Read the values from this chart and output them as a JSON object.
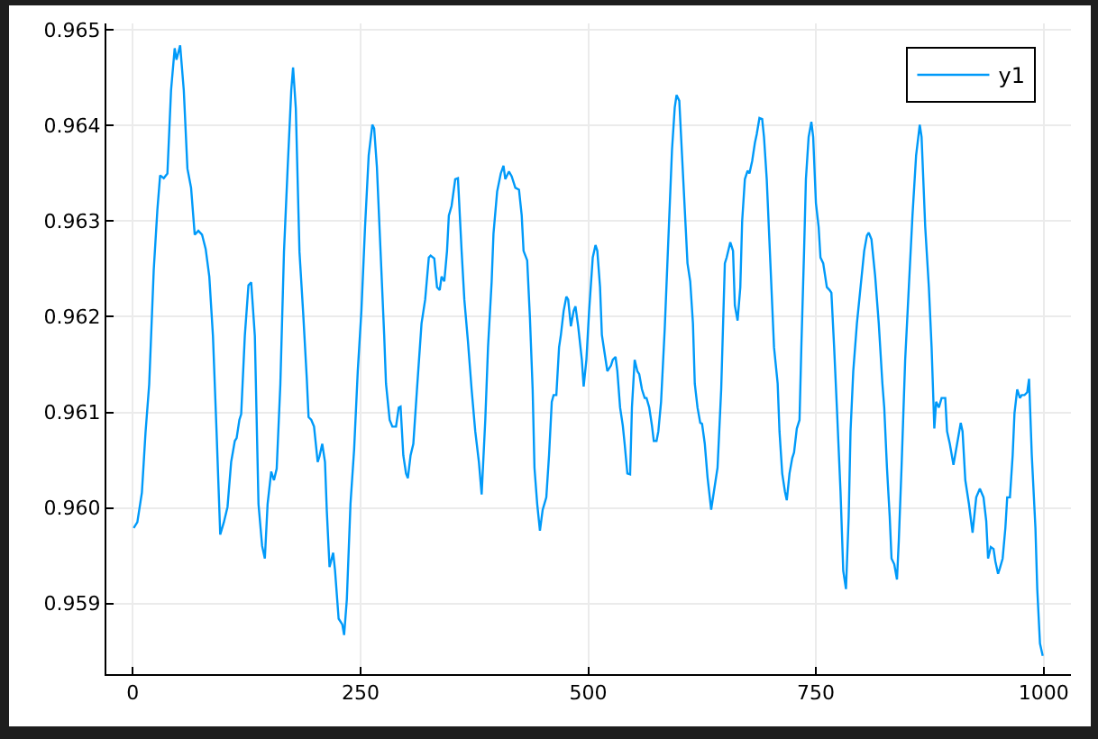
{
  "chart_data": {
    "type": "line",
    "x": [
      1,
      5,
      10,
      14,
      18,
      23,
      27,
      30,
      34,
      38,
      42,
      46,
      48,
      52,
      56,
      60,
      64,
      68,
      72,
      76,
      80,
      84,
      88,
      92,
      96,
      100,
      104,
      108,
      112,
      114,
      117,
      119,
      123,
      127,
      130,
      134,
      138,
      142,
      145,
      148,
      152,
      155,
      158,
      162,
      166,
      170,
      174,
      176,
      179,
      183,
      187,
      191,
      193,
      196,
      199,
      203,
      205,
      208,
      211,
      213,
      216,
      220,
      222,
      226,
      230,
      232,
      235,
      239,
      243,
      247,
      251,
      255,
      259,
      263,
      265,
      268,
      272,
      276,
      278,
      282,
      285,
      289,
      292,
      294,
      297,
      300,
      302,
      305,
      308,
      312,
      317,
      321,
      325,
      327,
      331,
      334,
      337,
      339,
      342,
      345,
      347,
      350,
      354,
      357,
      361,
      364,
      368,
      372,
      376,
      380,
      383,
      387,
      390,
      394,
      396,
      400,
      404,
      407,
      409,
      413,
      416,
      420,
      424,
      427,
      429,
      433,
      436,
      439,
      441,
      444,
      447,
      450,
      454,
      457,
      460,
      462,
      465,
      468,
      470,
      473,
      476,
      478,
      481,
      484,
      486,
      489,
      493,
      495,
      498,
      501,
      505,
      508,
      510,
      513,
      515,
      518,
      521,
      525,
      527,
      530,
      532,
      535,
      538,
      540,
      543,
      546,
      548,
      551,
      554,
      556,
      559,
      562,
      564,
      567,
      570,
      572,
      575,
      577,
      580,
      584,
      588,
      592,
      595,
      597,
      600,
      603,
      607,
      609,
      612,
      615,
      617,
      620,
      623,
      625,
      628,
      631,
      635,
      638,
      642,
      646,
      650,
      652,
      656,
      659,
      661,
      664,
      667,
      669,
      672,
      675,
      677,
      680,
      683,
      685,
      688,
      691,
      693,
      696,
      700,
      704,
      708,
      710,
      713,
      716,
      718,
      721,
      724,
      726,
      729,
      732,
      734,
      737,
      739,
      742,
      745,
      747,
      750,
      753,
      755,
      758,
      762,
      765,
      767,
      770,
      773,
      777,
      780,
      783,
      786,
      788,
      791,
      795,
      799,
      803,
      806,
      808,
      811,
      815,
      819,
      823,
      825,
      828,
      831,
      833,
      836,
      839,
      841,
      844,
      848,
      852,
      856,
      860,
      864,
      866,
      870,
      874,
      877,
      880,
      882,
      885,
      888,
      892,
      894,
      897,
      901,
      905,
      909,
      911,
      914,
      918,
      922,
      926,
      930,
      934,
      937,
      939,
      942,
      945,
      947,
      950,
      952,
      955,
      958,
      960,
      963,
      966,
      968,
      971,
      974,
      976,
      979,
      982,
      984,
      987,
      991,
      993,
      996,
      999
    ],
    "series": [
      {
        "name": "y1",
        "color": "#009af9",
        "values": [
          0.95979,
          0.95985,
          0.96016,
          0.96079,
          0.96129,
          0.96249,
          0.96312,
          0.96348,
          0.96345,
          0.9635,
          0.96437,
          0.96481,
          0.96469,
          0.96484,
          0.96437,
          0.96355,
          0.96335,
          0.96286,
          0.9629,
          0.96286,
          0.96271,
          0.96242,
          0.9618,
          0.96079,
          0.95972,
          0.95985,
          0.96001,
          0.96048,
          0.9607,
          0.96073,
          0.96092,
          0.96098,
          0.9618,
          0.96233,
          0.96236,
          0.9618,
          0.96004,
          0.9596,
          0.95947,
          0.96004,
          0.96038,
          0.96029,
          0.96041,
          0.96129,
          0.96268,
          0.96355,
          0.96437,
          0.96461,
          0.96418,
          0.96268,
          0.96205,
          0.96136,
          0.96095,
          0.96092,
          0.96085,
          0.96048,
          0.96054,
          0.96067,
          0.96048,
          0.95997,
          0.95938,
          0.95953,
          0.95935,
          0.95884,
          0.95878,
          0.95867,
          0.95904,
          0.96004,
          0.96061,
          0.96143,
          0.96206,
          0.96294,
          0.96369,
          0.96401,
          0.96397,
          0.96357,
          0.96269,
          0.96181,
          0.9613,
          0.96092,
          0.96085,
          0.96085,
          0.96105,
          0.96106,
          0.96055,
          0.96036,
          0.96031,
          0.96055,
          0.96067,
          0.96124,
          0.96193,
          0.96218,
          0.96262,
          0.96264,
          0.96261,
          0.96231,
          0.96228,
          0.96242,
          0.96237,
          0.96269,
          0.96306,
          0.96316,
          0.96344,
          0.96345,
          0.96269,
          0.96218,
          0.96174,
          0.96124,
          0.9608,
          0.96048,
          0.96014,
          0.96092,
          0.96168,
          0.96237,
          0.96287,
          0.96331,
          0.9635,
          0.96358,
          0.96344,
          0.96352,
          0.96347,
          0.96335,
          0.96333,
          0.96306,
          0.96269,
          0.96259,
          0.96199,
          0.96124,
          0.96042,
          0.96004,
          0.95976,
          0.95998,
          0.96011,
          0.96055,
          0.96111,
          0.96118,
          0.96118,
          0.96168,
          0.96181,
          0.96206,
          0.96221,
          0.96218,
          0.9619,
          0.96206,
          0.96211,
          0.9619,
          0.96155,
          0.96127,
          0.96155,
          0.96206,
          0.96262,
          0.96275,
          0.96269,
          0.96231,
          0.96181,
          0.96162,
          0.96143,
          0.96149,
          0.96155,
          0.96158,
          0.96143,
          0.96105,
          0.96086,
          0.96067,
          0.96036,
          0.96035,
          0.96105,
          0.96155,
          0.96143,
          0.9614,
          0.96124,
          0.96115,
          0.96115,
          0.96105,
          0.96086,
          0.9607,
          0.9607,
          0.9608,
          0.96111,
          0.96187,
          0.96281,
          0.96375,
          0.96419,
          0.96432,
          0.96426,
          0.96369,
          0.96294,
          0.96256,
          0.96237,
          0.96193,
          0.9613,
          0.96105,
          0.96089,
          0.96088,
          0.96067,
          0.96032,
          0.95998,
          0.96017,
          0.96042,
          0.96124,
          0.96256,
          0.96262,
          0.96278,
          0.96269,
          0.96212,
          0.96196,
          0.96231,
          0.963,
          0.96344,
          0.96353,
          0.9635,
          0.96363,
          0.96382,
          0.96391,
          0.96408,
          0.96407,
          0.96388,
          0.96344,
          0.96256,
          0.96168,
          0.9613,
          0.9608,
          0.96036,
          0.96017,
          0.96008,
          0.96036,
          0.96052,
          0.96058,
          0.96083,
          0.96092,
          0.96168,
          0.96269,
          0.96344,
          0.96388,
          0.96404,
          0.96388,
          0.96319,
          0.96294,
          0.96262,
          0.96256,
          0.96231,
          0.96228,
          0.96225,
          0.96168,
          0.96105,
          0.96017,
          0.95934,
          0.95915,
          0.95991,
          0.9608,
          0.96143,
          0.96193,
          0.96231,
          0.96269,
          0.96285,
          0.96288,
          0.96281,
          0.96243,
          0.96193,
          0.9613,
          0.96105,
          0.96042,
          0.95991,
          0.95947,
          0.95941,
          0.95925,
          0.95966,
          0.96042,
          0.96155,
          0.96231,
          0.96306,
          0.96369,
          0.96401,
          0.96388,
          0.96294,
          0.96231,
          0.96168,
          0.96083,
          0.96111,
          0.96105,
          0.96115,
          0.96115,
          0.9608,
          0.96067,
          0.96045,
          0.96067,
          0.96089,
          0.9608,
          0.96029,
          0.96004,
          0.95974,
          0.96011,
          0.9602,
          0.96011,
          0.95986,
          0.95947,
          0.95959,
          0.95957,
          0.95944,
          0.95931,
          0.95937,
          0.95947,
          0.95979,
          0.96011,
          0.96011,
          0.96055,
          0.96099,
          0.96124,
          0.96115,
          0.96118,
          0.96118,
          0.96121,
          0.96135,
          0.96055,
          0.95979,
          0.95915,
          0.95858,
          0.95845
        ]
      }
    ],
    "xlim": [
      -29,
      1030
    ],
    "ylim": [
      0.95826,
      0.96507
    ],
    "xticks": [
      0,
      250,
      500,
      750,
      1000
    ],
    "yticks": [
      0.959,
      {
        "value": 0.96,
        "label": "0.960"
      },
      0.961,
      0.962,
      0.963,
      0.964,
      0.965
    ],
    "grid": true,
    "legend": "top right"
  }
}
